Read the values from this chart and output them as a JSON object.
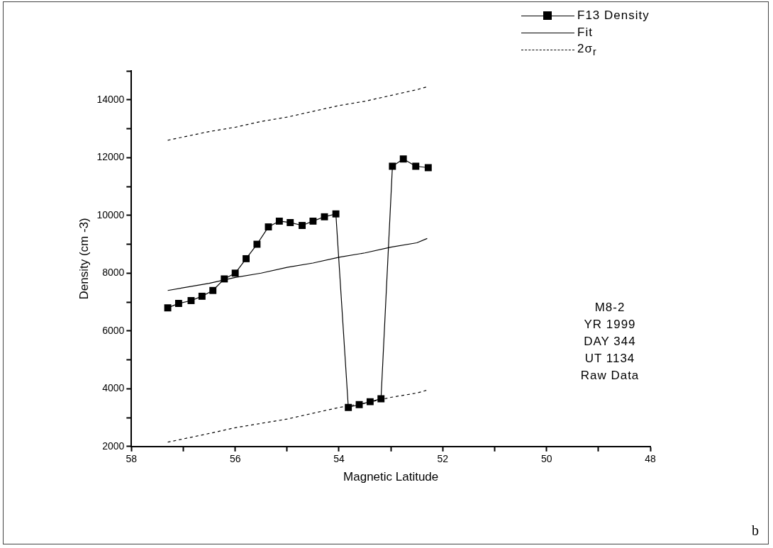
{
  "chart_data": {
    "type": "line",
    "xlabel": "Magnetic Latitude",
    "ylabel": "Density (cm -3)",
    "xlim": [
      58,
      48
    ],
    "xticks": [
      58,
      {
        "value": 57,
        "label": null
      },
      56,
      {
        "value": 55,
        "label": null
      },
      54,
      {
        "value": 53,
        "label": null
      },
      52,
      {
        "value": 51,
        "label": null
      },
      50,
      {
        "value": 49,
        "label": null
      },
      48
    ],
    "ylim": [
      2000,
      15000
    ],
    "yticks": [
      2000,
      {
        "value": 3000,
        "label": null
      },
      4000,
      {
        "value": 5000,
        "label": null
      },
      6000,
      {
        "value": 7000,
        "label": null
      },
      8000,
      {
        "value": 9000,
        "label": null
      },
      10000,
      {
        "value": 11000,
        "label": null
      },
      12000,
      {
        "value": 13000,
        "label": null
      },
      14000,
      {
        "value": 15000,
        "label": null
      }
    ],
    "grid": false,
    "legend": "top right",
    "series": [
      {
        "name": "F13 Density",
        "color": "#000000",
        "marker": "square",
        "line_style": "solid",
        "x": [
          57.3,
          57.09,
          56.85,
          56.64,
          56.43,
          56.21,
          56.0,
          55.79,
          55.58,
          55.36,
          55.15,
          54.94,
          54.71,
          54.5,
          54.28,
          54.06,
          53.82,
          53.61,
          53.4,
          53.19,
          52.97,
          52.76,
          52.52,
          52.28
        ],
        "values": [
          6800,
          6950,
          7050,
          7200,
          7400,
          7800,
          8000,
          8500,
          9000,
          9600,
          9800,
          9750,
          9650,
          9800,
          9950,
          10050,
          3350,
          3450,
          3550,
          3650,
          11700,
          11950,
          11700,
          11650
        ]
      },
      {
        "name": "Fit",
        "color": "#000000",
        "marker": "none",
        "line_style": "solid",
        "x": [
          57.3,
          56.5,
          56,
          55.5,
          55,
          54.5,
          54,
          53.5,
          53,
          52.5,
          52.3
        ],
        "values": [
          7400,
          7650,
          7850,
          8000,
          8200,
          8350,
          8550,
          8700,
          8900,
          9050,
          9200
        ]
      },
      {
        "name": "2σ$_{r}$",
        "color": "#000000",
        "marker": "none",
        "line_style": "dashed",
        "x": [
          57.3,
          56.5,
          56,
          55.5,
          55,
          54.5,
          54,
          53.5,
          53,
          52.5,
          52.3
        ],
        "values": [
          12600,
          12900,
          13050,
          13250,
          13400,
          13600,
          13800,
          13950,
          14150,
          14350,
          14450
        ]
      },
      {
        "color": "#000000",
        "marker": "none",
        "line_style": "dashed",
        "x": [
          57.3,
          56.5,
          56,
          55.5,
          55,
          54.5,
          54,
          53.5,
          53,
          52.5,
          52.3
        ],
        "values": [
          2150,
          2450,
          2650,
          2800,
          2950,
          3150,
          3350,
          3500,
          3700,
          3850,
          3950
        ]
      }
    ],
    "annotations": [
      "M8-2\nYR 1999\nDAY 344\nUT 1134\nRaw Data",
      "b"
    ]
  }
}
